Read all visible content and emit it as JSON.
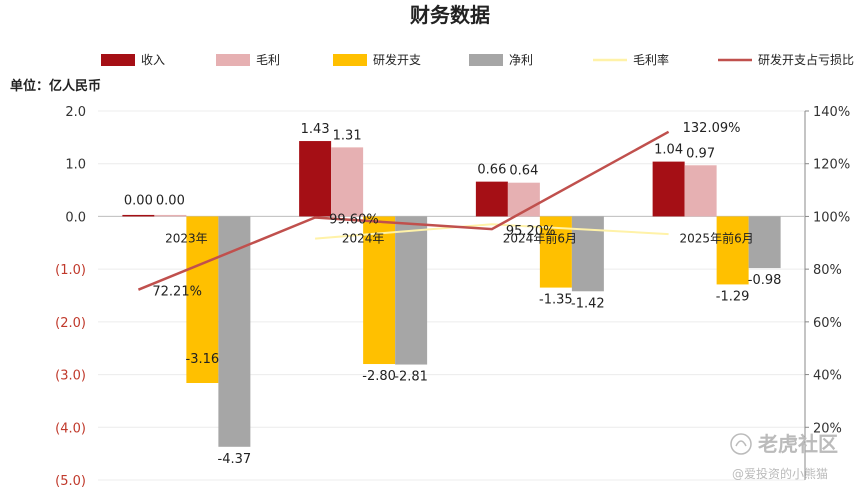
{
  "chart_data": {
    "type": "bar",
    "title": "财务数据",
    "unit_label": "单位：亿人民币",
    "categories": [
      "2023年",
      "2024年",
      "2024年前6月",
      "2025年前6月"
    ],
    "ylim": [
      -5,
      2
    ],
    "yticks": [
      2,
      1,
      0,
      -1,
      -2,
      -3,
      -4,
      -5
    ],
    "ytick_labels": [
      "2.0",
      "1.0",
      "0.0",
      "(1.0)",
      "(2.0)",
      "(3.0)",
      "(4.0)",
      "(5.0)"
    ],
    "y2lim": [
      0,
      140
    ],
    "y2ticks": [
      20,
      40,
      60,
      80,
      100,
      120,
      140
    ],
    "y2tick_labels": [
      "20%",
      "40%",
      "60%",
      "80%",
      "100%",
      "120%",
      "140%"
    ],
    "legend_position": "top",
    "bar_series": [
      {
        "name": "收入",
        "color": "#a50f15",
        "values": [
          0.0,
          1.43,
          0.66,
          1.04
        ],
        "labels": [
          "0.00",
          "1.43",
          "0.66",
          "1.04"
        ]
      },
      {
        "name": "毛利",
        "color": "#e6b0b2",
        "values": [
          0.0,
          1.31,
          0.64,
          0.97
        ],
        "labels": [
          "0.00",
          "1.31",
          "0.64",
          "0.97"
        ]
      },
      {
        "name": "研发开支",
        "color": "#ffc000",
        "values": [
          -3.16,
          -2.8,
          -1.35,
          -1.29
        ],
        "labels": [
          "-3.16",
          "-2.80",
          "-1.35",
          "-1.29"
        ]
      },
      {
        "name": "净利",
        "color": "#a6a6a6",
        "values": [
          -4.37,
          -2.81,
          -1.42,
          -0.98
        ],
        "labels": [
          "-4.37",
          "-2.81",
          "-1.42",
          "-0.98"
        ]
      }
    ],
    "line_series": [
      {
        "name": "毛利率",
        "color": "#fff2a8",
        "values": [
          null,
          91.6,
          97.0,
          93.3
        ],
        "labels": [
          null,
          "",
          "",
          ""
        ]
      },
      {
        "name": "研发开支占亏损比",
        "color": "#c0504d",
        "values": [
          72.21,
          99.6,
          95.2,
          132.09
        ],
        "labels": [
          "72.21%",
          "99.60%",
          "95.20%",
          "132.09%"
        ]
      }
    ]
  },
  "watermark": {
    "logo_text": "老虎社区",
    "sub_text": "@爱投资的小熊猫"
  }
}
